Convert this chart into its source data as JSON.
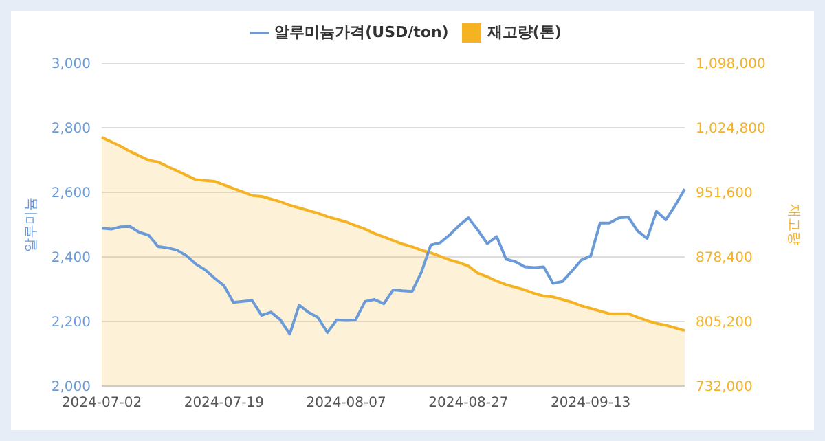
{
  "chart_data": {
    "type": "line",
    "categories": [
      "2024-07-02",
      null,
      null,
      null,
      null,
      null,
      null,
      null,
      null,
      null,
      null,
      null,
      null,
      "2024-07-19",
      null,
      null,
      null,
      null,
      null,
      null,
      null,
      null,
      null,
      null,
      null,
      null,
      "2024-08-07",
      null,
      null,
      null,
      null,
      null,
      null,
      null,
      null,
      null,
      null,
      null,
      null,
      "2024-08-27",
      null,
      null,
      null,
      null,
      null,
      null,
      null,
      null,
      null,
      null,
      null,
      null,
      "2024-09-13",
      null,
      null,
      null,
      null,
      null,
      null,
      null,
      null,
      null,
      null
    ],
    "series": [
      {
        "name": "재고량(톤)",
        "type": "area",
        "axis": "y2",
        "color": "#f5b324",
        "values": [
          1014000,
          1009000,
          1004000,
          998000,
          993000,
          988000,
          986000,
          981000,
          976000,
          971000,
          966000,
          965000,
          964000,
          960000,
          956000,
          952000,
          948000,
          947000,
          944000,
          941000,
          937000,
          934000,
          931000,
          928000,
          924000,
          921000,
          918000,
          914000,
          910000,
          905000,
          901000,
          897000,
          893000,
          890000,
          886000,
          883000,
          879000,
          875000,
          872000,
          868000,
          860000,
          856000,
          851000,
          847000,
          844000,
          841000,
          837000,
          834000,
          833000,
          830000,
          827000,
          823000,
          820000,
          817000,
          814000,
          814000,
          814000,
          810000,
          806000,
          803000,
          801000,
          798000,
          795000
        ]
      },
      {
        "name": "알루미늄가격(USD/ton)",
        "color": "#6a9bd8",
        "values": [
          2489,
          2486,
          2493,
          2494,
          2476,
          2467,
          2432,
          2428,
          2421,
          2404,
          2378,
          2360,
          2334,
          2311,
          2259,
          2262,
          2265,
          2219,
          2229,
          2205,
          2161,
          2251,
          2228,
          2212,
          2166,
          2205,
          2203,
          2205,
          2262,
          2268,
          2255,
          2298,
          2295,
          2293,
          2353,
          2437,
          2444,
          2468,
          2497,
          2521,
          2483,
          2441,
          2463,
          2393,
          2385,
          2369,
          2367,
          2369,
          2318,
          2324,
          2356,
          2390,
          2403,
          2505,
          2505,
          2521,
          2523,
          2480,
          2457,
          2541,
          2515,
          2560,
          2610
        ]
      }
    ],
    "ylabel": "알루미늄",
    "y2label": "재고량",
    "ylim": [
      2000,
      3000
    ],
    "yticks": [
      {
        "value": 2000,
        "label": "2,000"
      },
      {
        "value": 2200,
        "label": "2,200"
      },
      {
        "value": 2400,
        "label": "2,400"
      },
      {
        "value": 2600,
        "label": "2,600"
      },
      {
        "value": 2800,
        "label": "2,800"
      },
      {
        "value": 3000,
        "label": "3,000"
      }
    ],
    "y2lim": [
      732000,
      1098000
    ],
    "y2ticks": [
      {
        "value": 732000,
        "label": "732,000"
      },
      {
        "value": 805200,
        "label": "805,200"
      },
      {
        "value": 878400,
        "label": "878,400"
      },
      {
        "value": 951600,
        "label": "951,600"
      },
      {
        "value": 1024800,
        "label": "1,024,800"
      },
      {
        "value": 1098000,
        "label": "1,098,000"
      }
    ],
    "grid": "y",
    "legend": "top",
    "marker": "none"
  }
}
